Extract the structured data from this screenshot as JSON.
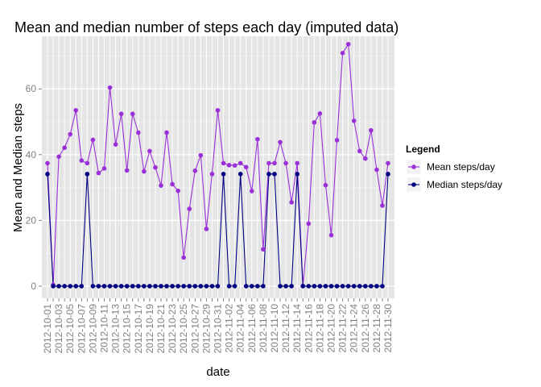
{
  "chart_data": {
    "type": "line",
    "title": "Mean and median number of steps each day (imputed data)",
    "xlabel": "date",
    "ylabel": "Mean and Median steps",
    "ylim": [
      -3.7,
      76
    ],
    "yticks": [
      0,
      20,
      40,
      60
    ],
    "grid": true,
    "legend": {
      "title": "Legend",
      "placement": "right"
    },
    "x": [
      "2012-10-01",
      "2012-10-02",
      "2012-10-03",
      "2012-10-04",
      "2012-10-05",
      "2012-10-06",
      "2012-10-07",
      "2012-10-08",
      "2012-10-09",
      "2012-10-10",
      "2012-10-11",
      "2012-10-12",
      "2012-10-13",
      "2012-10-14",
      "2012-10-15",
      "2012-10-16",
      "2012-10-17",
      "2012-10-18",
      "2012-10-19",
      "2012-10-20",
      "2012-10-21",
      "2012-10-22",
      "2012-10-23",
      "2012-10-24",
      "2012-10-25",
      "2012-10-26",
      "2012-10-27",
      "2012-10-28",
      "2012-10-29",
      "2012-10-30",
      "2012-10-31",
      "2012-11-01",
      "2012-11-02",
      "2012-11-03",
      "2012-11-04",
      "2012-11-05",
      "2012-11-06",
      "2012-11-07",
      "2012-11-08",
      "2012-11-09",
      "2012-11-10",
      "2012-11-11",
      "2012-11-12",
      "2012-11-13",
      "2012-11-14",
      "2012-11-15",
      "2012-11-16",
      "2012-11-17",
      "2012-11-18",
      "2012-11-19",
      "2012-11-20",
      "2012-11-21",
      "2012-11-22",
      "2012-11-23",
      "2012-11-24",
      "2012-11-25",
      "2012-11-26",
      "2012-11-27",
      "2012-11-28",
      "2012-11-29",
      "2012-11-30"
    ],
    "xtick_labels": [
      "2012-10-01",
      "2012-10-03",
      "2012-10-05",
      "2012-10-07",
      "2012-10-09",
      "2012-10-11",
      "2012-10-13",
      "2012-10-15",
      "2012-10-17",
      "2012-10-19",
      "2012-10-21",
      "2012-10-23",
      "2012-10-25",
      "2012-10-27",
      "2012-10-29",
      "2012-10-31",
      "2012-11-02",
      "2012-11-04",
      "2012-11-06",
      "2012-11-08",
      "2012-11-10",
      "2012-11-12",
      "2012-11-14",
      "2012-11-16",
      "2012-11-18",
      "2012-11-20",
      "2012-11-22",
      "2012-11-24",
      "2012-11-26",
      "2012-11-28",
      "2012-11-30"
    ],
    "series": [
      {
        "name": "Mean steps/day",
        "color": "#9b30d9",
        "values": [
          37.4,
          0.4,
          39.4,
          42.1,
          46.2,
          53.5,
          38.2,
          37.4,
          44.5,
          34.4,
          35.8,
          60.4,
          43.1,
          52.4,
          35.2,
          52.4,
          46.7,
          34.9,
          41.1,
          36.1,
          30.6,
          46.7,
          31.0,
          29.0,
          8.7,
          23.5,
          35.1,
          39.8,
          17.4,
          34.1,
          53.5,
          37.4,
          36.8,
          36.7,
          37.4,
          36.2,
          28.9,
          44.7,
          11.2,
          37.4,
          37.4,
          43.8,
          37.4,
          25.5,
          37.4,
          0.1,
          19.0,
          49.8,
          52.5,
          30.7,
          15.5,
          44.4,
          70.9,
          73.6,
          50.3,
          41.1,
          38.8,
          47.4,
          35.4,
          24.5,
          37.4
        ]
      },
      {
        "name": "Median steps/day",
        "color": "#000080",
        "values": [
          34.1,
          0,
          0,
          0,
          0,
          0,
          0,
          34.1,
          0,
          0,
          0,
          0,
          0,
          0,
          0,
          0,
          0,
          0,
          0,
          0,
          0,
          0,
          0,
          0,
          0,
          0,
          0,
          0,
          0,
          0,
          0,
          34.1,
          0,
          0,
          34.1,
          0,
          0,
          0,
          0,
          34.1,
          34.1,
          0,
          0,
          0,
          34.1,
          0,
          0,
          0,
          0,
          0,
          0,
          0,
          0,
          0,
          0,
          0,
          0,
          0,
          0,
          0,
          34.1
        ]
      }
    ]
  }
}
